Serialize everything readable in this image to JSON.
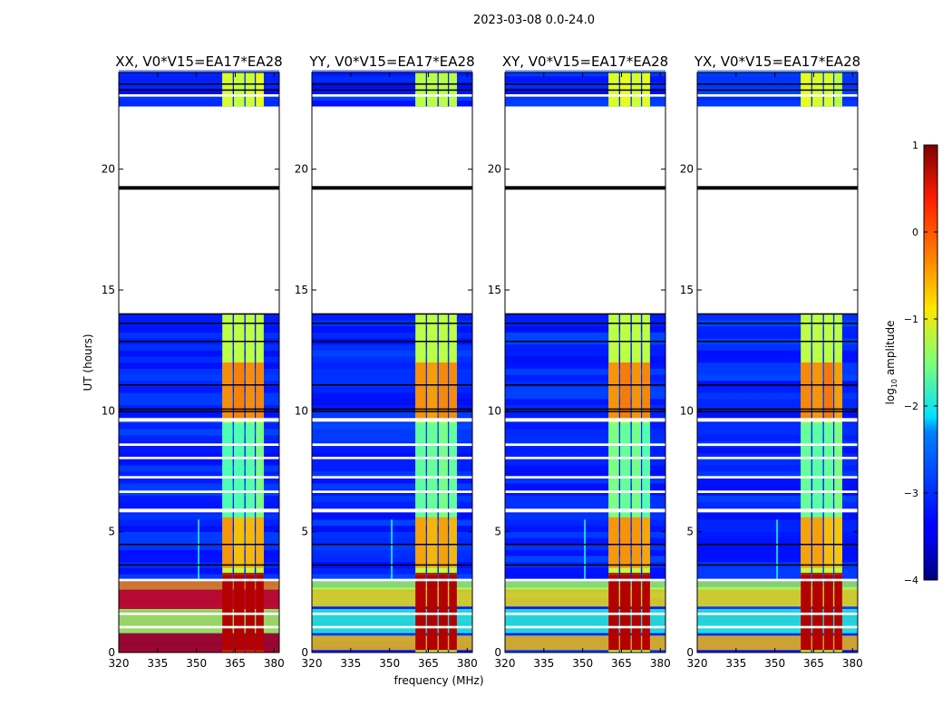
{
  "figure": {
    "suptitle": "2023-03-08 0.0-24.0",
    "xlabel": "frequency (MHz)",
    "ylabel": "UT (hours)",
    "colorbar": {
      "label": "log",
      "label_sub": "10",
      "label_tail": " amplitude",
      "range": [
        -4,
        1
      ],
      "ticks": [
        "1",
        "0",
        "−1",
        "−2",
        "−3",
        "−4"
      ],
      "tick_values": [
        1,
        0,
        -1,
        -2,
        -3,
        -4
      ]
    }
  },
  "panels": [
    {
      "title": "XX, V0*V15=EA17*EA28"
    },
    {
      "title": "YY, V0*V15=EA17*EA28"
    },
    {
      "title": "XY, V0*V15=EA17*EA28"
    },
    {
      "title": "YX, V0*V15=EA17*EA28"
    }
  ],
  "chart_data": {
    "type": "heatmap",
    "colormap": "jet",
    "value_label": "log10 amplitude",
    "xlabel": "frequency (MHz)",
    "ylabel": "UT (hours)",
    "xlim": [
      320,
      382
    ],
    "ylim": [
      0,
      24
    ],
    "x_ticks": [
      320,
      335,
      350,
      365,
      380
    ],
    "y_ticks": [
      0,
      5,
      10,
      15,
      20
    ],
    "zlim": [
      -4,
      1
    ],
    "panels": [
      "XX",
      "YY",
      "XY",
      "YX"
    ],
    "background_level": -3.2,
    "bright_band_MHz": [
      360,
      376
    ],
    "band_channels_MHz": [
      [
        360,
        364
      ],
      [
        364.5,
        368.5
      ],
      [
        369,
        372.5
      ],
      [
        373,
        376
      ]
    ],
    "band_level": -1.2,
    "band_level_peak": 0.2,
    "no_data_hours": [
      [
        14.0,
        22.6
      ]
    ],
    "flagged_hours": [
      19.15,
      19.3
    ]
  }
}
